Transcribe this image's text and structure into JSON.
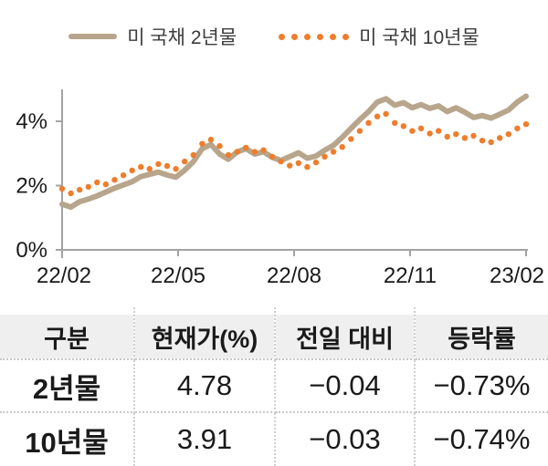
{
  "chart_data": {
    "type": "line",
    "title": "",
    "xlabel": "",
    "ylabel": "",
    "x_tick_labels": [
      "22/02",
      "22/05",
      "22/08",
      "22/11",
      "23/02"
    ],
    "y_ticks": [
      0,
      2,
      4
    ],
    "y_tick_labels": [
      "0%",
      "2%",
      "4%"
    ],
    "ylim": [
      0,
      5
    ],
    "grid": false,
    "legend_position": "top",
    "axis_color": "#a3a3a3",
    "series": [
      {
        "name": "미 국채 2년물",
        "style": "solid",
        "color": "#b7a58c",
        "values": [
          1.42,
          1.33,
          1.5,
          1.58,
          1.68,
          1.8,
          1.92,
          2.02,
          2.12,
          2.28,
          2.35,
          2.42,
          2.33,
          2.26,
          2.48,
          2.75,
          3.15,
          3.28,
          2.98,
          2.82,
          3.05,
          3.15,
          2.98,
          3.05,
          2.88,
          2.78,
          2.9,
          3.02,
          2.85,
          2.92,
          3.1,
          3.25,
          3.5,
          3.78,
          4.05,
          4.3,
          4.6,
          4.7,
          4.5,
          4.58,
          4.42,
          4.52,
          4.4,
          4.48,
          4.3,
          4.42,
          4.28,
          4.12,
          4.18,
          4.1,
          4.22,
          4.35,
          4.6,
          4.78
        ]
      },
      {
        "name": "미 국채 10년물",
        "style": "dotted",
        "color": "#ee7d2c",
        "values": [
          1.9,
          1.76,
          1.87,
          1.96,
          2.1,
          2.04,
          2.18,
          2.32,
          2.47,
          2.58,
          2.52,
          2.67,
          2.61,
          2.52,
          2.75,
          2.95,
          3.3,
          3.43,
          3.23,
          2.95,
          3.05,
          3.18,
          3.05,
          3.1,
          2.9,
          2.75,
          2.62,
          2.7,
          2.58,
          2.72,
          2.9,
          3.05,
          3.2,
          3.45,
          3.7,
          3.95,
          4.15,
          4.23,
          3.95,
          3.85,
          3.7,
          3.78,
          3.62,
          3.7,
          3.52,
          3.6,
          3.48,
          3.55,
          3.4,
          3.35,
          3.48,
          3.6,
          3.78,
          3.91
        ]
      }
    ]
  },
  "table": {
    "headers": [
      "구분",
      "현재가(%)",
      "전일 대비",
      "등락률"
    ],
    "rows": [
      {
        "label": "2년물",
        "current": "4.78",
        "change": "−0.04",
        "pct": "−0.73%"
      },
      {
        "label": "10년물",
        "current": "3.91",
        "change": "−0.03",
        "pct": "−0.74%"
      }
    ]
  }
}
